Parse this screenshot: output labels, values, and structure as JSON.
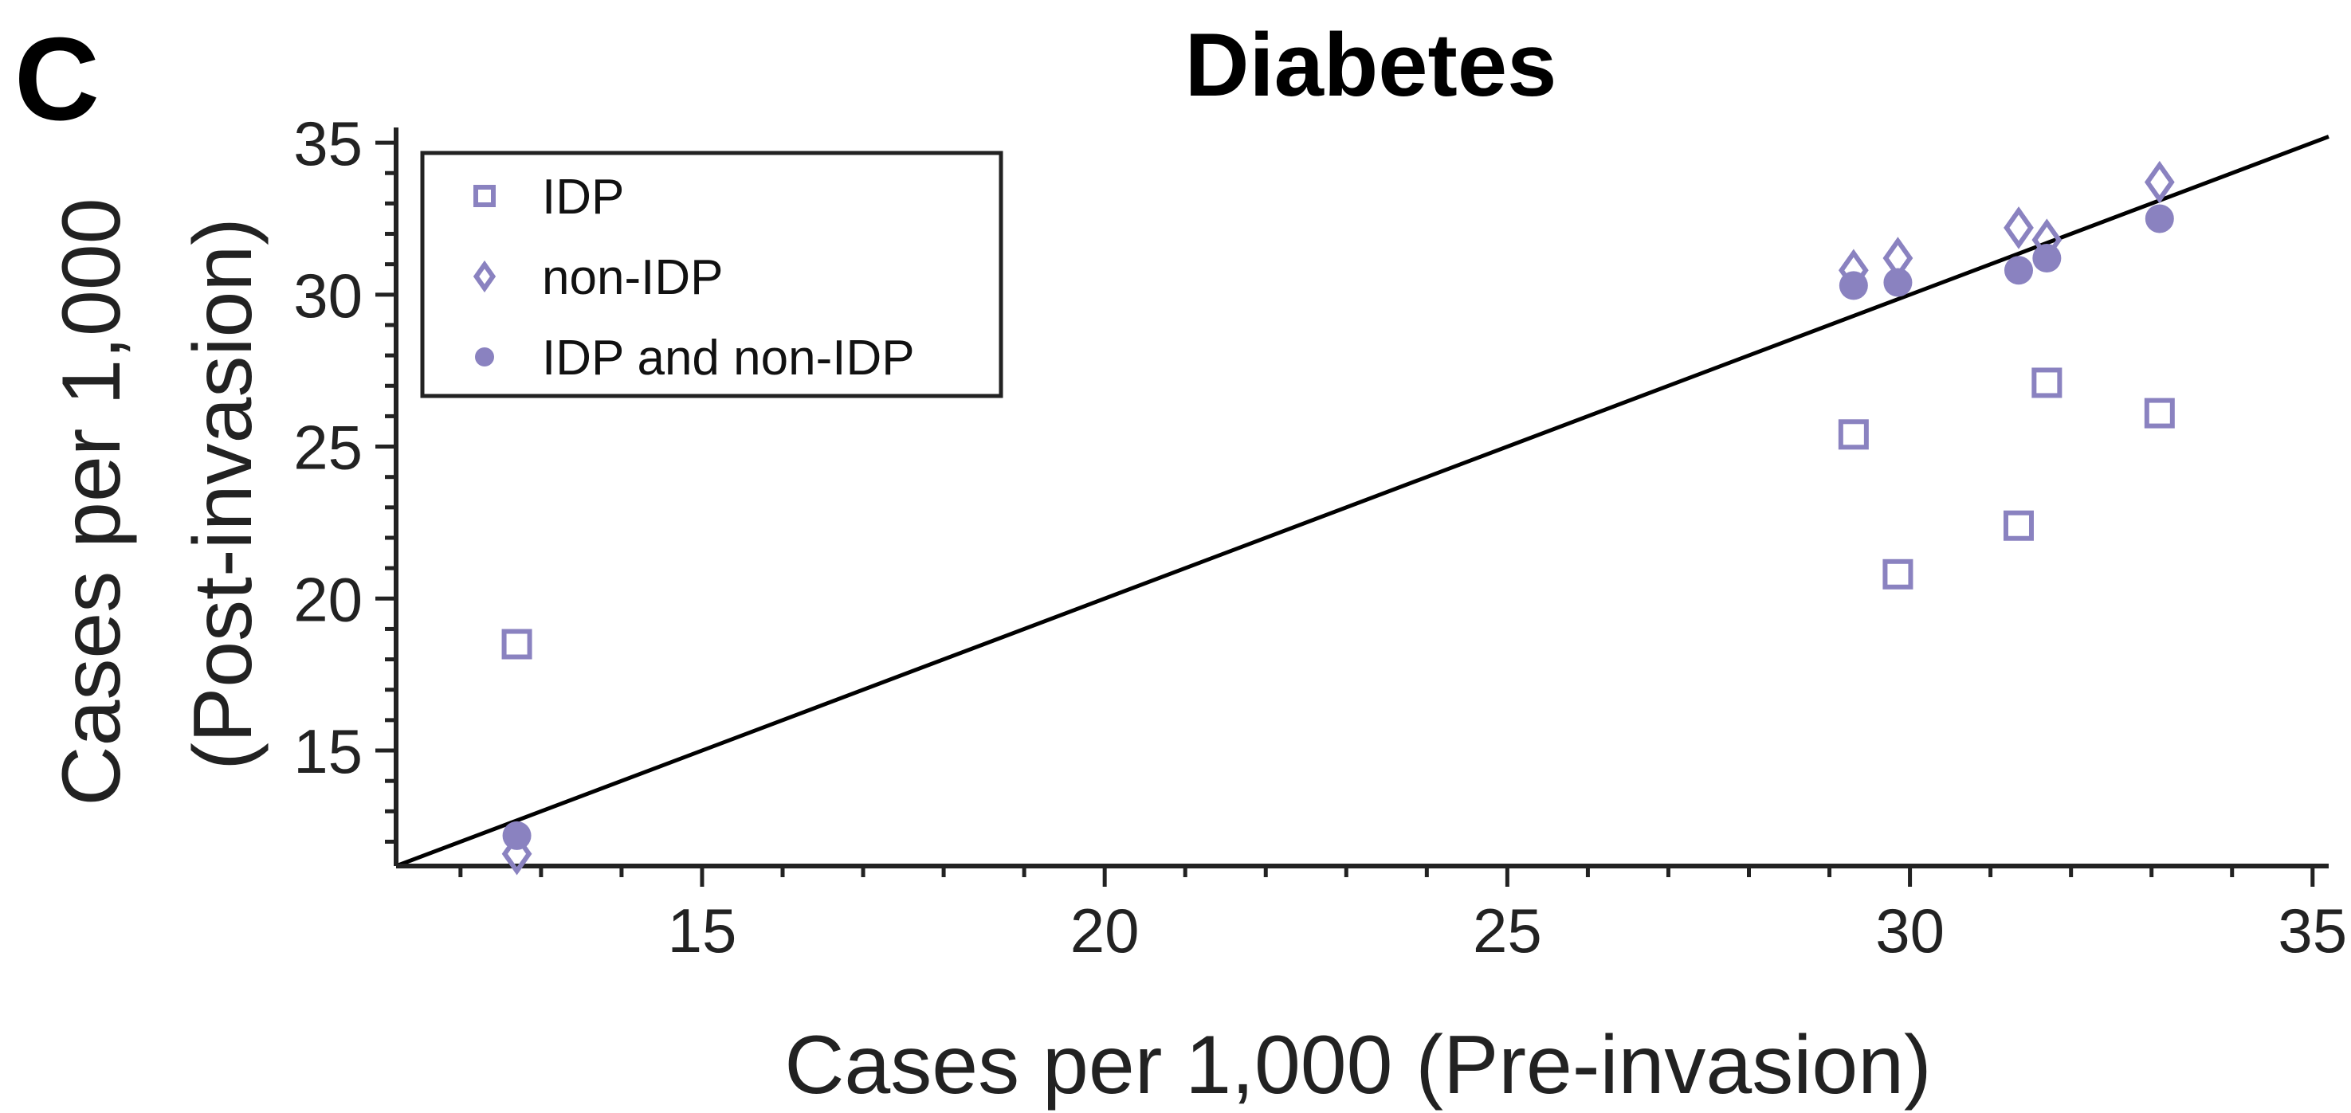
{
  "panel_letter": "C",
  "chart_data": {
    "type": "scatter",
    "title": "Diabetes",
    "xlabel": "Cases per 1,000 (Pre-invasion)",
    "ylabel_line1": "Cases per 1,000",
    "ylabel_line2": "(Post-invasion)",
    "xlim": [
      11.2,
      35.2
    ],
    "ylim": [
      11.2,
      35.5
    ],
    "xticks": [
      15,
      20,
      25,
      30,
      35
    ],
    "yticks": [
      15,
      20,
      25,
      30,
      35
    ],
    "x_minor_step": 1,
    "y_minor_step": 1,
    "reference_line": "y = x",
    "legend_position": "top-left",
    "marker_color": "#8A82C0",
    "series": [
      {
        "name": "IDP",
        "marker": "square",
        "points": [
          [
            12.7,
            18.5
          ],
          [
            29.3,
            25.4
          ],
          [
            29.85,
            20.8
          ],
          [
            31.35,
            22.4
          ],
          [
            31.7,
            27.1
          ],
          [
            33.1,
            26.1
          ]
        ]
      },
      {
        "name": "non-IDP",
        "marker": "diamond",
        "points": [
          [
            12.7,
            11.6
          ],
          [
            29.3,
            30.8
          ],
          [
            29.85,
            31.2
          ],
          [
            31.35,
            32.2
          ],
          [
            31.7,
            31.8
          ],
          [
            33.1,
            33.7
          ]
        ]
      },
      {
        "name": "IDP and non-IDP",
        "marker": "circle",
        "points": [
          [
            12.7,
            12.2
          ],
          [
            29.3,
            30.3
          ],
          [
            29.85,
            30.4
          ],
          [
            31.35,
            30.8
          ],
          [
            31.7,
            31.2
          ],
          [
            33.1,
            32.5
          ]
        ]
      }
    ]
  }
}
